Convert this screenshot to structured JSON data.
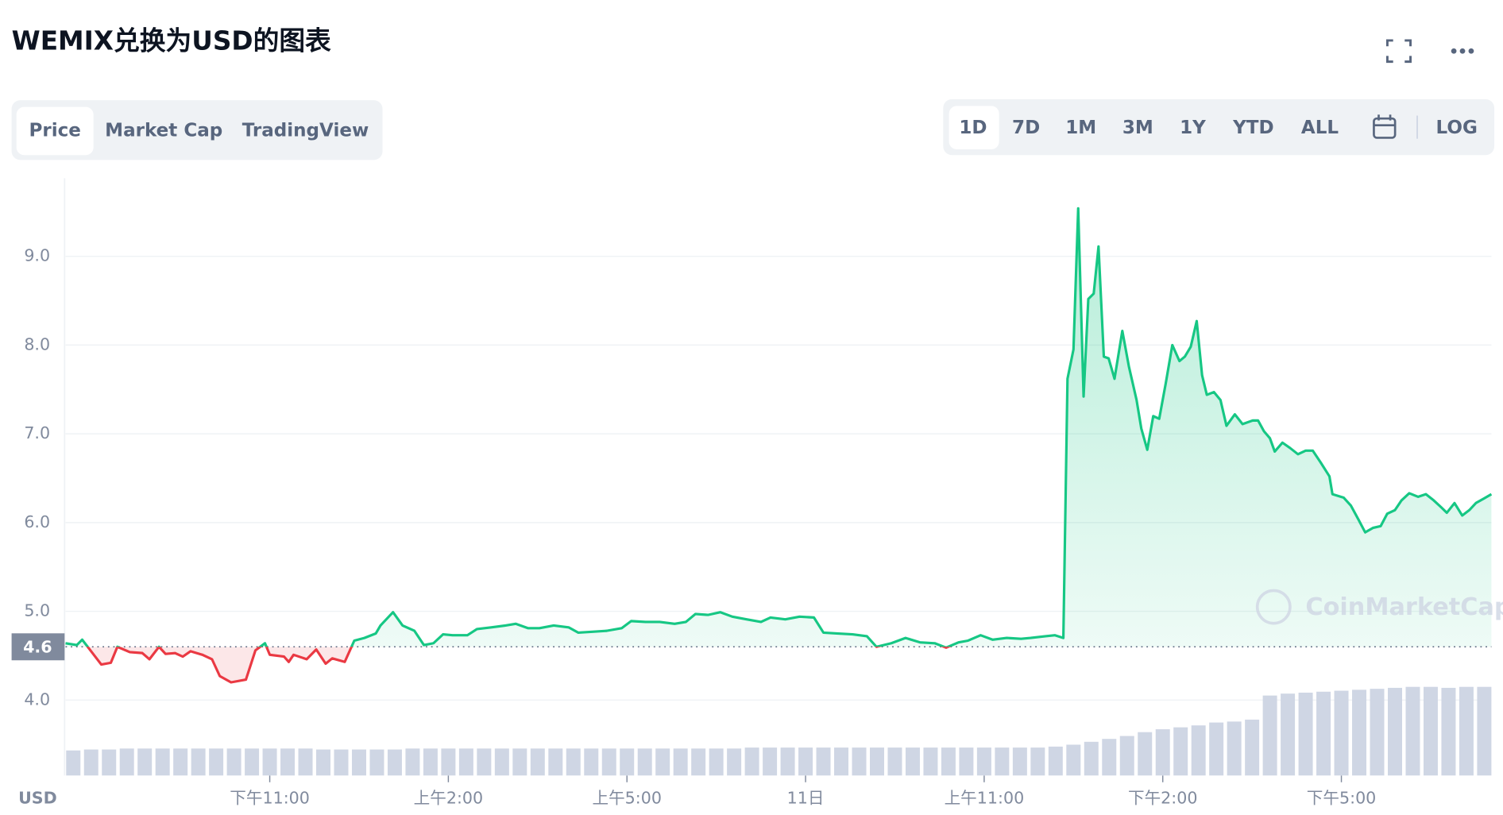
{
  "header": {
    "title": "WEMIX兑换为USD的图表"
  },
  "tabs": [
    "Price",
    "Market Cap",
    "TradingView"
  ],
  "active_tab": 0,
  "ranges": [
    "1D",
    "7D",
    "1M",
    "3M",
    "1Y",
    "YTD",
    "ALL",
    "LOG"
  ],
  "active_range": 0,
  "chart_data": {
    "type": "line",
    "y_axis_label": "USD",
    "watermark": "CoinMarketCap",
    "up_color": "#16c784",
    "down_color": "#ea3943",
    "price_line": 4.6,
    "grid": true,
    "xlim": [
      19.57,
      43.52
    ],
    "ylim": [
      3.15,
      9.88
    ],
    "xticks": [
      {
        "value": 23,
        "label": "下午11:00"
      },
      {
        "value": 26,
        "label": "上午2:00"
      },
      {
        "value": 29,
        "label": "上午5:00"
      },
      {
        "value": 32,
        "label": "11日"
      },
      {
        "value": 35,
        "label": "上午11:00"
      },
      {
        "value": 38,
        "label": "下午2:00"
      },
      {
        "value": 41,
        "label": "下午5:00"
      }
    ],
    "yticks": [
      {
        "value": 4,
        "label": "4.0"
      },
      {
        "value": 5,
        "label": "5.0"
      },
      {
        "value": 6,
        "label": "6.0"
      },
      {
        "value": 7,
        "label": "7.0"
      },
      {
        "value": 8,
        "label": "8.0"
      },
      {
        "value": 9,
        "label": "9.0"
      }
    ],
    "x": [
      19.57,
      19.76,
      19.85,
      20.01,
      20.17,
      20.33,
      20.44,
      20.65,
      20.86,
      20.98,
      21.14,
      21.25,
      21.41,
      21.54,
      21.67,
      21.87,
      22.03,
      22.16,
      22.35,
      22.6,
      22.76,
      22.92,
      23.0,
      23.24,
      23.32,
      23.4,
      23.62,
      23.78,
      23.94,
      24.05,
      24.26,
      24.42,
      24.59,
      24.78,
      24.86,
      25.07,
      25.23,
      25.43,
      25.59,
      25.75,
      25.91,
      26.07,
      26.32,
      26.48,
      26.72,
      26.96,
      27.13,
      27.34,
      27.53,
      27.77,
      28.02,
      28.18,
      28.42,
      28.66,
      28.91,
      29.07,
      29.31,
      29.55,
      29.8,
      29.99,
      30.15,
      30.36,
      30.57,
      30.77,
      31.01,
      31.25,
      31.41,
      31.66,
      31.9,
      32.14,
      32.3,
      32.55,
      32.79,
      33.03,
      33.19,
      33.44,
      33.68,
      33.92,
      34.17,
      34.36,
      34.57,
      34.73,
      34.94,
      35.14,
      35.38,
      35.62,
      35.78,
      36.03,
      36.19,
      36.33,
      36.4,
      36.5,
      36.58,
      36.67,
      36.75,
      36.84,
      36.92,
      37.01,
      37.09,
      37.19,
      37.32,
      37.43,
      37.56,
      37.64,
      37.74,
      37.84,
      37.94,
      38.05,
      38.16,
      38.28,
      38.37,
      38.47,
      38.57,
      38.66,
      38.74,
      38.86,
      38.97,
      39.07,
      39.21,
      39.34,
      39.51,
      39.6,
      39.7,
      39.8,
      39.88,
      40.01,
      40.14,
      40.27,
      40.4,
      40.52,
      40.65,
      40.8,
      40.85,
      41.04,
      41.16,
      41.29,
      41.4,
      41.53,
      41.66,
      41.77,
      41.9,
      42.01,
      42.14,
      42.29,
      42.42,
      42.55,
      42.68,
      42.77,
      42.9,
      43.03,
      43.15,
      43.26,
      43.39,
      43.52
    ],
    "values": [
      4.64,
      4.62,
      4.68,
      4.54,
      4.4,
      4.42,
      4.6,
      4.54,
      4.53,
      4.46,
      4.6,
      4.52,
      4.53,
      4.49,
      4.55,
      4.51,
      4.46,
      4.27,
      4.2,
      4.23,
      4.56,
      4.64,
      4.51,
      4.49,
      4.43,
      4.51,
      4.46,
      4.57,
      4.41,
      4.47,
      4.43,
      4.67,
      4.7,
      4.75,
      4.84,
      4.99,
      4.84,
      4.78,
      4.62,
      4.64,
      4.74,
      4.73,
      4.73,
      4.8,
      4.82,
      4.84,
      4.86,
      4.81,
      4.81,
      4.84,
      4.82,
      4.76,
      4.77,
      4.78,
      4.81,
      4.89,
      4.88,
      4.88,
      4.86,
      4.88,
      4.97,
      4.96,
      4.99,
      4.94,
      4.91,
      4.88,
      4.93,
      4.91,
      4.94,
      4.93,
      4.76,
      4.75,
      4.74,
      4.72,
      4.6,
      4.64,
      4.7,
      4.65,
      4.64,
      4.59,
      4.65,
      4.67,
      4.73,
      4.68,
      4.7,
      4.69,
      4.7,
      4.72,
      4.73,
      4.7,
      7.62,
      7.95,
      9.54,
      7.42,
      8.52,
      8.58,
      9.11,
      7.87,
      7.85,
      7.62,
      8.16,
      7.76,
      7.38,
      7.06,
      6.82,
      7.2,
      7.17,
      7.57,
      8.0,
      7.82,
      7.87,
      7.98,
      8.27,
      7.66,
      7.44,
      7.47,
      7.38,
      7.09,
      7.22,
      7.11,
      7.15,
      7.15,
      7.03,
      6.95,
      6.8,
      6.9,
      6.84,
      6.77,
      6.81,
      6.81,
      6.68,
      6.52,
      6.32,
      6.28,
      6.19,
      6.03,
      5.89,
      5.94,
      5.96,
      6.1,
      6.14,
      6.25,
      6.33,
      6.29,
      6.32,
      6.25,
      6.17,
      6.11,
      6.22,
      6.08,
      6.14,
      6.22,
      6.27,
      6.32
    ],
    "volume": {
      "color": "#cfd6e4",
      "ylim": [
        0,
        100
      ],
      "x": [
        19.7,
        20.0,
        20.3,
        20.6,
        20.9,
        21.2,
        21.5,
        21.8,
        22.1,
        22.4,
        22.7,
        23.0,
        23.3,
        23.6,
        23.9,
        24.2,
        24.5,
        24.8,
        25.1,
        25.4,
        25.7,
        26.0,
        26.3,
        26.6,
        26.9,
        27.2,
        27.5,
        27.8,
        28.1,
        28.4,
        28.7,
        29.0,
        29.3,
        29.6,
        29.9,
        30.2,
        30.5,
        30.8,
        31.1,
        31.4,
        31.7,
        32.0,
        32.3,
        32.6,
        32.9,
        33.2,
        33.5,
        33.8,
        34.1,
        34.4,
        34.7,
        35.0,
        35.3,
        35.6,
        35.9,
        36.2,
        36.5,
        36.8,
        37.1,
        37.4,
        37.7,
        38.0,
        38.3,
        38.6,
        38.9,
        39.2,
        39.5,
        39.8,
        40.1,
        40.4,
        40.7,
        41.0,
        41.3,
        41.6,
        41.9,
        42.2,
        42.5,
        42.8,
        43.1,
        43.4
      ],
      "values": [
        26,
        27,
        27,
        28,
        28,
        28,
        28,
        28,
        28,
        28,
        28,
        28,
        28,
        28,
        27,
        27,
        27,
        27,
        27,
        28,
        28,
        28,
        28,
        28,
        28,
        28,
        28,
        28,
        28,
        28,
        28,
        28,
        28,
        28,
        28,
        28,
        28,
        28,
        29,
        29,
        29,
        29,
        29,
        29,
        29,
        29,
        29,
        29,
        29,
        29,
        29,
        29,
        29,
        29,
        29,
        30,
        32,
        35,
        38,
        41,
        45,
        48,
        50,
        52,
        55,
        56,
        58,
        83,
        85,
        86,
        87,
        88,
        89,
        90,
        91,
        92,
        92,
        91,
        92,
        92
      ]
    }
  }
}
